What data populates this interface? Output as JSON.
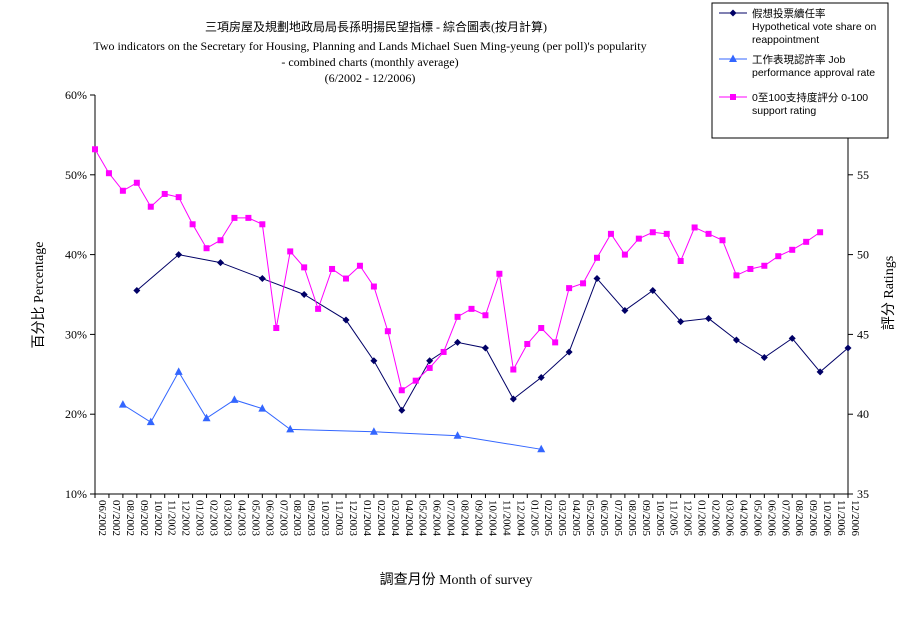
{
  "chart_data": {
    "type": "line",
    "title_lines": [
      "三項房屋及規劃地政局局長孫明揚民望指標 - 綜合圖表(按月計算)",
      "Two indicators on the Secretary for Housing, Planning and Lands Michael Suen Ming-yeung (per poll)'s popularity",
      "- combined charts (monthly average)",
      "(6/2002 - 12/2006)"
    ],
    "xlabel": "調查月份  Month of survey",
    "ylabel_left": "百分比  Percentage",
    "ylabel_right": "評分  Ratings",
    "y_left": {
      "min": 10,
      "max": 60,
      "step": 10,
      "ticks": [
        "10%",
        "20%",
        "30%",
        "40%",
        "50%",
        "60%"
      ]
    },
    "y_right": {
      "min": 35,
      "max": 60,
      "step": 5,
      "ticks": [
        "35",
        "40",
        "45",
        "50",
        "55"
      ]
    },
    "categories": [
      "06/2002",
      "07/2002",
      "08/2002",
      "09/2002",
      "10/2002",
      "11/2002",
      "12/2002",
      "01/2003",
      "02/2003",
      "03/2003",
      "04/2003",
      "05/2003",
      "06/2003",
      "07/2003",
      "08/2003",
      "09/2003",
      "10/2003",
      "11/2003",
      "12/2003",
      "01/2004",
      "02/2004",
      "03/2004",
      "04/2004",
      "05/2004",
      "06/2004",
      "07/2004",
      "08/2004",
      "09/2004",
      "10/2004",
      "11/2004",
      "12/2004",
      "01/2005",
      "02/2005",
      "03/2005",
      "04/2005",
      "05/2005",
      "06/2005",
      "07/2005",
      "08/2005",
      "09/2005",
      "10/2005",
      "11/2005",
      "12/2005",
      "01/2006",
      "02/2006",
      "03/2006",
      "04/2006",
      "05/2006",
      "06/2006",
      "07/2006",
      "08/2006",
      "09/2006",
      "10/2006",
      "11/2006",
      "12/2006"
    ],
    "series": [
      {
        "name": "假想投票續任率 Hypothetical vote share on reappointment",
        "axis": "left",
        "color": "#000066",
        "marker": "diamond",
        "points": [
          [
            3,
            35.5
          ],
          [
            6,
            40
          ],
          [
            9,
            39
          ],
          [
            12,
            37
          ],
          [
            15,
            35
          ],
          [
            18,
            31.8
          ],
          [
            20,
            26.7
          ],
          [
            22,
            20.5
          ],
          [
            24,
            26.7
          ],
          [
            26,
            29
          ],
          [
            28,
            28.3
          ],
          [
            30,
            21.9
          ],
          [
            32,
            24.6
          ],
          [
            34,
            27.8
          ],
          [
            36,
            37
          ],
          [
            38,
            33
          ],
          [
            40,
            35.5
          ],
          [
            42,
            31.6
          ],
          [
            44,
            32
          ],
          [
            46,
            29.3
          ],
          [
            48,
            27.1
          ],
          [
            50,
            29.5
          ],
          [
            52,
            25.3
          ],
          [
            54,
            28.3
          ]
        ]
      },
      {
        "name": "工作表現認許率 Job performance approval rate",
        "axis": "left",
        "color": "#3366ff",
        "marker": "triangle",
        "points": [
          [
            2,
            21.2
          ],
          [
            4,
            19
          ],
          [
            6,
            25.3
          ],
          [
            8,
            19.5
          ],
          [
            10,
            21.8
          ],
          [
            12,
            20.7
          ],
          [
            14,
            18.1
          ],
          [
            20,
            17.8
          ],
          [
            26,
            17.3
          ],
          [
            32,
            15.6
          ]
        ]
      },
      {
        "name": "0至100支持度評分 0-100 support rating",
        "axis": "right",
        "color": "#ff00ff",
        "marker": "square",
        "points": [
          [
            0,
            56.6
          ],
          [
            1,
            55.1
          ],
          [
            2,
            54
          ],
          [
            3,
            54.5
          ],
          [
            4,
            53
          ],
          [
            5,
            53.8
          ],
          [
            6,
            53.6
          ],
          [
            7,
            51.9
          ],
          [
            8,
            50.4
          ],
          [
            9,
            50.9
          ],
          [
            10,
            52.3
          ],
          [
            11,
            52.3
          ],
          [
            12,
            51.9
          ],
          [
            13,
            45.4
          ],
          [
            14,
            50.2
          ],
          [
            15,
            49.2
          ],
          [
            16,
            46.6
          ],
          [
            17,
            49.1
          ],
          [
            18,
            48.5
          ],
          [
            19,
            49.3
          ],
          [
            20,
            48
          ],
          [
            21,
            45.2
          ],
          [
            22,
            41.5
          ],
          [
            23,
            42.1
          ],
          [
            24,
            42.9
          ],
          [
            25,
            43.9
          ],
          [
            26,
            46.1
          ],
          [
            27,
            46.6
          ],
          [
            28,
            46.2
          ],
          [
            29,
            48.8
          ],
          [
            30,
            42.8
          ],
          [
            31,
            44.4
          ],
          [
            32,
            45.4
          ],
          [
            33,
            44.5
          ],
          [
            34,
            47.9
          ],
          [
            35,
            48.2
          ],
          [
            36,
            49.8
          ],
          [
            37,
            51.3
          ],
          [
            38,
            50
          ],
          [
            39,
            51
          ],
          [
            40,
            51.4
          ],
          [
            41,
            51.3
          ],
          [
            42,
            49.6
          ],
          [
            43,
            51.7
          ],
          [
            44,
            51.3
          ],
          [
            45,
            50.9
          ],
          [
            46,
            48.7
          ],
          [
            47,
            49.1
          ],
          [
            48,
            49.3
          ],
          [
            49,
            49.9
          ],
          [
            50,
            50.3
          ],
          [
            51,
            50.8
          ],
          [
            52,
            51.4
          ]
        ]
      }
    ],
    "legend_position": "top-right",
    "grid": false
  }
}
